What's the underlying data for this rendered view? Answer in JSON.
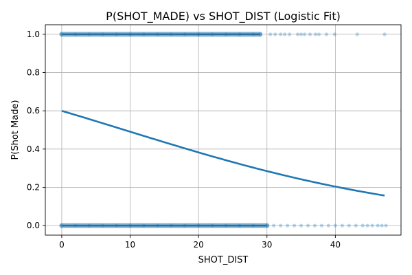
{
  "chart_data": {
    "type": "scatter",
    "title": "P(SHOT_MADE) vs SHOT_DIST (Logistic Fit)",
    "xlabel": "SHOT_DIST",
    "ylabel": "P(Shot Made)",
    "xlim": [
      -2.4,
      49.6
    ],
    "ylim": [
      -0.05,
      1.05
    ],
    "xticks": [
      0,
      10,
      20,
      30,
      40
    ],
    "yticks": [
      0.0,
      0.2,
      0.4,
      0.6,
      0.8,
      1.0
    ],
    "xtick_labels": [
      "0",
      "10",
      "20",
      "30",
      "40"
    ],
    "ytick_labels": [
      "0.0",
      "0.2",
      "0.4",
      "0.6",
      "0.8",
      "1.0"
    ],
    "grid": true,
    "series": [
      {
        "kind": "scatter",
        "color": "#1f77b4",
        "opacity": 0.3,
        "points": [
          {
            "x": 0,
            "y": 1
          },
          {
            "x": 2,
            "y": 1
          },
          {
            "x": 4,
            "y": 1
          },
          {
            "x": 6,
            "y": 1
          },
          {
            "x": 8,
            "y": 1
          },
          {
            "x": 10,
            "y": 1
          },
          {
            "x": 12,
            "y": 1
          },
          {
            "x": 14,
            "y": 1
          },
          {
            "x": 16,
            "y": 1
          },
          {
            "x": 18,
            "y": 1
          },
          {
            "x": 20,
            "y": 1
          },
          {
            "x": 22,
            "y": 1
          },
          {
            "x": 24,
            "y": 1
          },
          {
            "x": 26,
            "y": 1
          },
          {
            "x": 28,
            "y": 1
          },
          {
            "x": 29,
            "y": 1
          },
          {
            "x": 30.5,
            "y": 1
          },
          {
            "x": 31.2,
            "y": 1
          },
          {
            "x": 32,
            "y": 1
          },
          {
            "x": 32.6,
            "y": 1
          },
          {
            "x": 33.3,
            "y": 1
          },
          {
            "x": 34.5,
            "y": 1
          },
          {
            "x": 35,
            "y": 1
          },
          {
            "x": 35.5,
            "y": 1
          },
          {
            "x": 36.3,
            "y": 1
          },
          {
            "x": 37.1,
            "y": 1
          },
          {
            "x": 37.6,
            "y": 1
          },
          {
            "x": 38.7,
            "y": 1
          },
          {
            "x": 39.9,
            "y": 1
          },
          {
            "x": 43.2,
            "y": 1
          },
          {
            "x": 47.2,
            "y": 1
          },
          {
            "x": 0,
            "y": 0
          },
          {
            "x": 2,
            "y": 0
          },
          {
            "x": 4,
            "y": 0
          },
          {
            "x": 6,
            "y": 0
          },
          {
            "x": 8,
            "y": 0
          },
          {
            "x": 10,
            "y": 0
          },
          {
            "x": 12,
            "y": 0
          },
          {
            "x": 14,
            "y": 0
          },
          {
            "x": 16,
            "y": 0
          },
          {
            "x": 18,
            "y": 0
          },
          {
            "x": 20,
            "y": 0
          },
          {
            "x": 22,
            "y": 0
          },
          {
            "x": 24,
            "y": 0
          },
          {
            "x": 26,
            "y": 0
          },
          {
            "x": 28,
            "y": 0
          },
          {
            "x": 30,
            "y": 0
          },
          {
            "x": 31,
            "y": 0
          },
          {
            "x": 32,
            "y": 0
          },
          {
            "x": 33,
            "y": 0
          },
          {
            "x": 34,
            "y": 0
          },
          {
            "x": 35,
            "y": 0
          },
          {
            "x": 36,
            "y": 0
          },
          {
            "x": 37,
            "y": 0
          },
          {
            "x": 38,
            "y": 0
          },
          {
            "x": 39,
            "y": 0
          },
          {
            "x": 40,
            "y": 0
          },
          {
            "x": 41,
            "y": 0
          },
          {
            "x": 42,
            "y": 0
          },
          {
            "x": 43,
            "y": 0
          },
          {
            "x": 44,
            "y": 0
          },
          {
            "x": 44.7,
            "y": 0
          },
          {
            "x": 45.4,
            "y": 0
          },
          {
            "x": 46.2,
            "y": 0
          },
          {
            "x": 46.8,
            "y": 0
          },
          {
            "x": 47.4,
            "y": 0
          }
        ],
        "dense_bands": [
          {
            "y": 1,
            "x_from": 0,
            "x_to": 29
          },
          {
            "y": 0,
            "x_from": 0,
            "x_to": 30
          }
        ]
      },
      {
        "kind": "line",
        "color": "#1f77b4",
        "intercept": 0.405,
        "slope": -0.0442,
        "x_range": [
          0,
          47.2
        ]
      }
    ]
  }
}
